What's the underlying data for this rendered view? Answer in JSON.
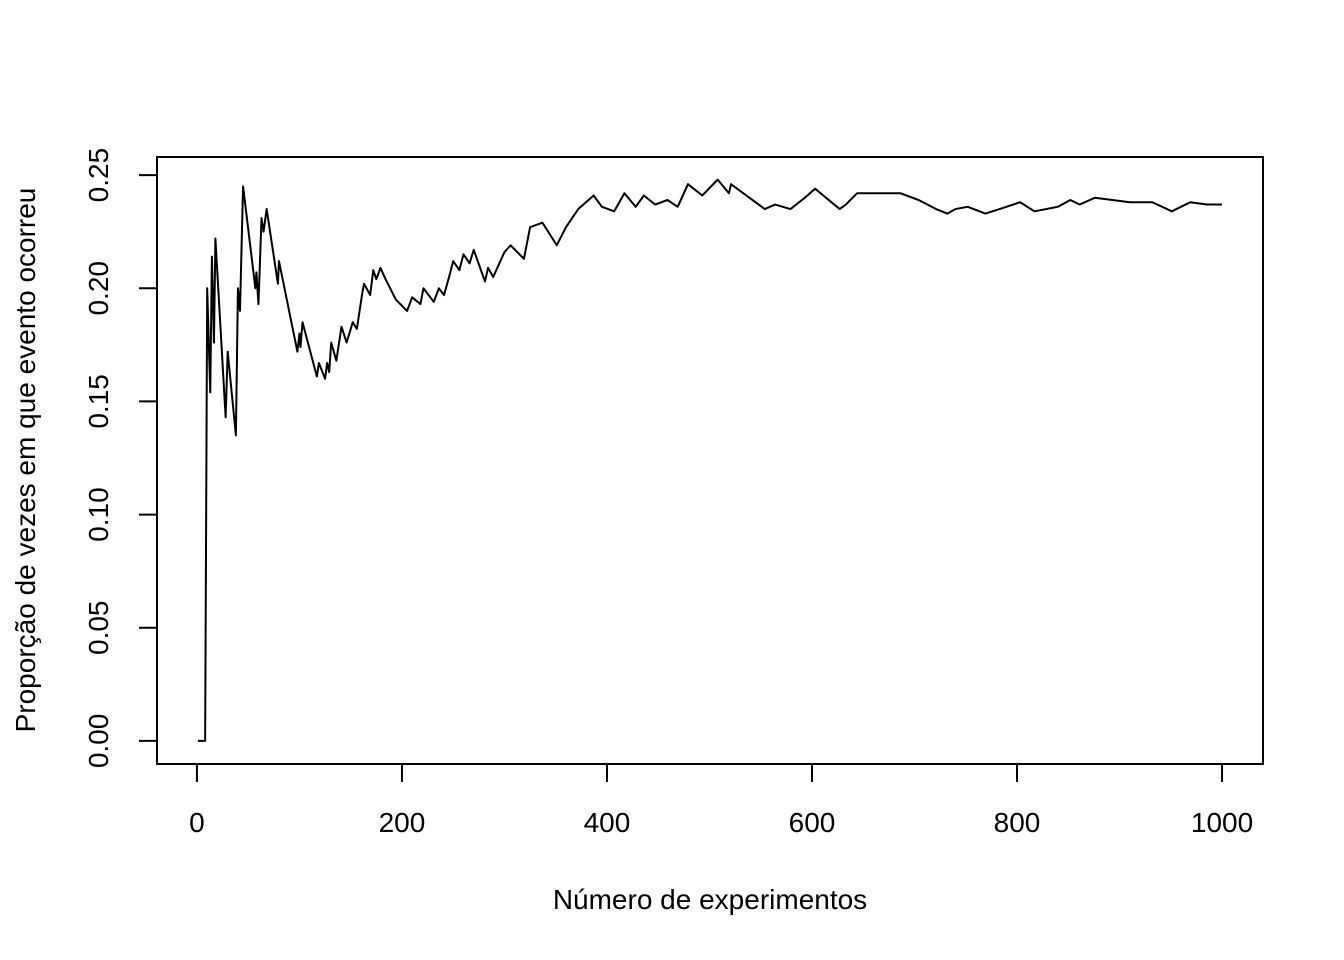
{
  "chart_data": {
    "type": "line",
    "xlabel": "Número de experimentos",
    "ylabel": "Proporção de vezes em que evento ocorreu",
    "x": [
      1,
      8,
      10,
      13,
      14.6,
      16.6,
      18,
      28,
      30,
      38,
      40,
      42,
      45,
      57,
      58,
      60,
      63,
      65,
      68,
      79,
      80,
      98,
      100,
      101,
      103,
      117,
      119,
      125,
      127,
      129,
      131,
      136,
      141,
      146,
      152,
      156,
      161,
      163,
      169,
      172,
      175,
      179,
      184,
      194,
      205,
      210,
      218,
      221,
      231,
      236,
      241,
      246,
      250,
      256,
      260,
      266,
      270,
      281,
      284,
      289,
      300,
      306,
      319,
      325,
      337,
      351,
      360,
      372,
      387,
      395,
      407,
      417,
      428,
      436,
      447,
      459,
      469,
      479,
      493,
      508,
      519,
      521,
      554,
      564,
      579,
      593,
      603,
      627,
      633,
      644,
      655,
      686,
      704,
      721,
      732,
      740,
      752,
      769,
      783,
      803,
      817,
      840,
      852,
      861,
      876,
      893,
      910,
      932,
      951,
      969,
      985,
      1000
    ],
    "values": [
      0,
      0,
      0.2,
      0.154,
      0.214,
      0.176,
      0.222,
      0.143,
      0.172,
      0.135,
      0.2,
      0.19,
      0.245,
      0.2,
      0.207,
      0.193,
      0.231,
      0.225,
      0.235,
      0.202,
      0.212,
      0.172,
      0.18,
      0.174,
      0.185,
      0.161,
      0.167,
      0.16,
      0.167,
      0.163,
      0.176,
      0.168,
      0.183,
      0.176,
      0.185,
      0.182,
      0.197,
      0.202,
      0.197,
      0.208,
      0.204,
      0.209,
      0.204,
      0.195,
      0.19,
      0.196,
      0.193,
      0.2,
      0.194,
      0.2,
      0.197,
      0.205,
      0.212,
      0.208,
      0.215,
      0.211,
      0.217,
      0.203,
      0.209,
      0.205,
      0.216,
      0.219,
      0.213,
      0.227,
      0.229,
      0.219,
      0.227,
      0.235,
      0.241,
      0.236,
      0.234,
      0.242,
      0.236,
      0.241,
      0.237,
      0.239,
      0.236,
      0.246,
      0.241,
      0.248,
      0.242,
      0.246,
      0.235,
      0.237,
      0.235,
      0.24,
      0.244,
      0.235,
      0.237,
      0.242,
      0.242,
      0.242,
      0.239,
      0.235,
      0.233,
      0.235,
      0.236,
      0.233,
      0.235,
      0.238,
      0.234,
      0.236,
      0.239,
      0.237,
      0.24,
      0.239,
      0.238,
      0.238,
      0.234,
      0.238,
      0.237,
      0.237
    ],
    "color": "#000000",
    "xlim": [
      -38.96,
      1039.96
    ],
    "ylim": [
      -0.0102,
      0.258
    ],
    "xticks": [
      0,
      200,
      400,
      600,
      800,
      1000
    ],
    "yticks": [
      {
        "value": 0,
        "label": "0.00"
      },
      0.05,
      {
        "value": 0.1,
        "label": "0.10"
      },
      0.15,
      {
        "value": 0.2,
        "label": "0.20"
      },
      0.25
    ]
  }
}
